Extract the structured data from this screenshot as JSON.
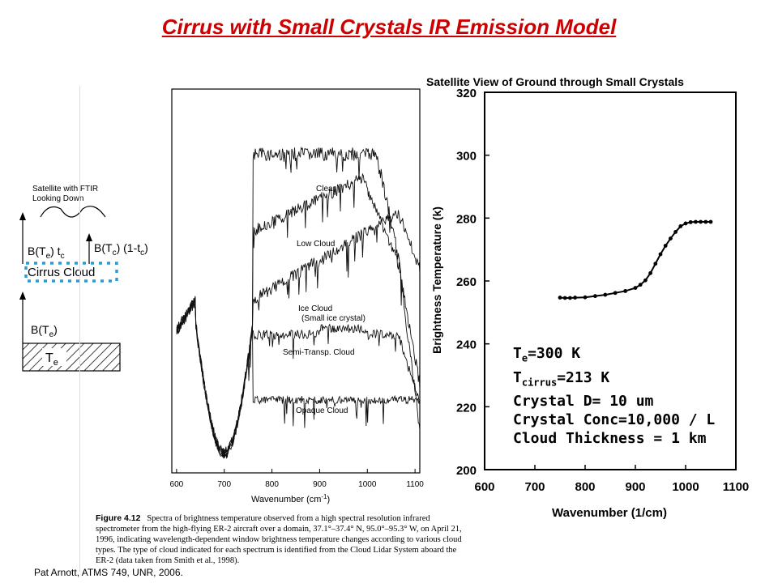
{
  "title": "Cirrus with Small Crystals IR Emission Model",
  "credit": "Pat Arnott, ATMS 749, UNR, 2006.",
  "schematic": {
    "satellite_label_line1": "Satellite with FTIR",
    "satellite_label_line2": "Looking Down",
    "b_te_tc": "B(T",
    "b_te_tc_sub1": "e",
    "b_te_tc_mid": ") t",
    "b_te_tc_sub2": "c",
    "b_tc": "B(T",
    "b_tc_sub": "c",
    "b_tc_end": ") (1-t",
    "b_tc_sub2": "c",
    "b_tc_close": ")",
    "cloud_label": "Cirrus Cloud",
    "b_te": "B(T",
    "b_te_sub": "e",
    "b_te_close": ")",
    "surface": "T",
    "surface_sub": "e",
    "cloud_color": "#2b9bd8"
  },
  "figure": {
    "caption_bold": "Figure 4.12",
    "caption_text": "Spectra of brightness temperature observed from a high spectral resolution infrared spectrometer from the high-flying ER-2 aircraft over a domain, 37.1°–37.4° N, 95.0°–95.3° W, on April 21, 1996, indicating wavelength-dependent window brightness temperature changes according to various cloud types. The type of cloud indicated for each spectrum is identified from the Cloud Lidar System aboard the ER-2 (data taken from Smith et al., 1998).",
    "xlabel": "Wavenumber (cm",
    "xlabel_sup": "-1",
    "xlabel_end": ")",
    "xticks": [
      "600",
      "700",
      "800",
      "900",
      "1000",
      "1100"
    ],
    "labels": [
      "Clear",
      "Low Cloud",
      "Ice Cloud",
      "(Small ice crystal)",
      "Semi-Transp. Cloud",
      "Opaque Cloud"
    ]
  },
  "params": {
    "line1": "T",
    "line1_sub": "e",
    "line1_end": "=300 K",
    "line2": "T",
    "line2_sub": "cirrus",
    "line2_end": "=213 K",
    "line3": "Crystal D= 10 um",
    "line4": "Crystal Conc=10,000 / L",
    "line5": "Cloud Thickness = 1 km"
  },
  "chart_data": [
    {
      "type": "line",
      "title": "Satellite View of Ground through Small Crystals",
      "xlabel": "Wavenumber (1/cm)",
      "ylabel": "Brightness Temperature (k)",
      "xlim": [
        600,
        1100
      ],
      "ylim": [
        200,
        320
      ],
      "xticks": [
        "600",
        "700",
        "800",
        "900",
        "1000",
        "1100"
      ],
      "yticks": [
        "200",
        "220",
        "240",
        "260",
        "280",
        "300",
        "320"
      ],
      "x": [
        750,
        760,
        770,
        780,
        800,
        820,
        840,
        860,
        880,
        900,
        910,
        920,
        930,
        940,
        950,
        960,
        970,
        980,
        990,
        1000,
        1010,
        1020,
        1030,
        1040,
        1050
      ],
      "y": [
        254.7,
        254.6,
        254.6,
        254.7,
        254.8,
        255.2,
        255.6,
        256.2,
        256.8,
        257.8,
        258.8,
        260.2,
        262.5,
        265.5,
        268.5,
        271.2,
        273.5,
        275.6,
        277.4,
        278.3,
        278.7,
        278.8,
        278.8,
        278.8,
        278.8
      ],
      "line_color": "#000000"
    }
  ]
}
